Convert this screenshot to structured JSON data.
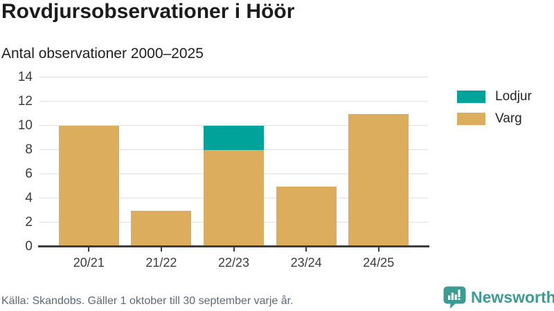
{
  "header": {
    "title": "Rovdjursobservationer i Höör",
    "subtitle": "Antal observationer 2000–2025"
  },
  "chart_data": {
    "type": "bar",
    "stacked": true,
    "title": "Rovdjursobservationer i Höör",
    "subtitle": "Antal observationer 2000–2025",
    "categories": [
      "20/21",
      "21/22",
      "22/23",
      "23/24",
      "24/25"
    ],
    "series": [
      {
        "name": "Varg",
        "color": "#dbad5c",
        "values": [
          10,
          3,
          8,
          5,
          11
        ]
      },
      {
        "name": "Lodjur",
        "color": "#00a39a",
        "values": [
          0,
          0,
          2,
          0,
          0
        ]
      }
    ],
    "legend": [
      {
        "label": "Lodjur",
        "color": "#00a39a"
      },
      {
        "label": "Varg",
        "color": "#dbad5c"
      }
    ],
    "legend_position": "right",
    "xlabel": "",
    "ylabel": "",
    "ylim": [
      0,
      14
    ],
    "yticks": [
      0,
      2,
      4,
      6,
      8,
      10,
      12,
      14
    ],
    "grid": true
  },
  "footer": {
    "source": "Källa: Skandobs. Gäller 1 oktober till 30 september varje år."
  },
  "branding": {
    "logo_text": "Newsworthy",
    "logo_color": "#3a9c93",
    "logo_icon": "bar-chart-speech-bubble-icon"
  }
}
